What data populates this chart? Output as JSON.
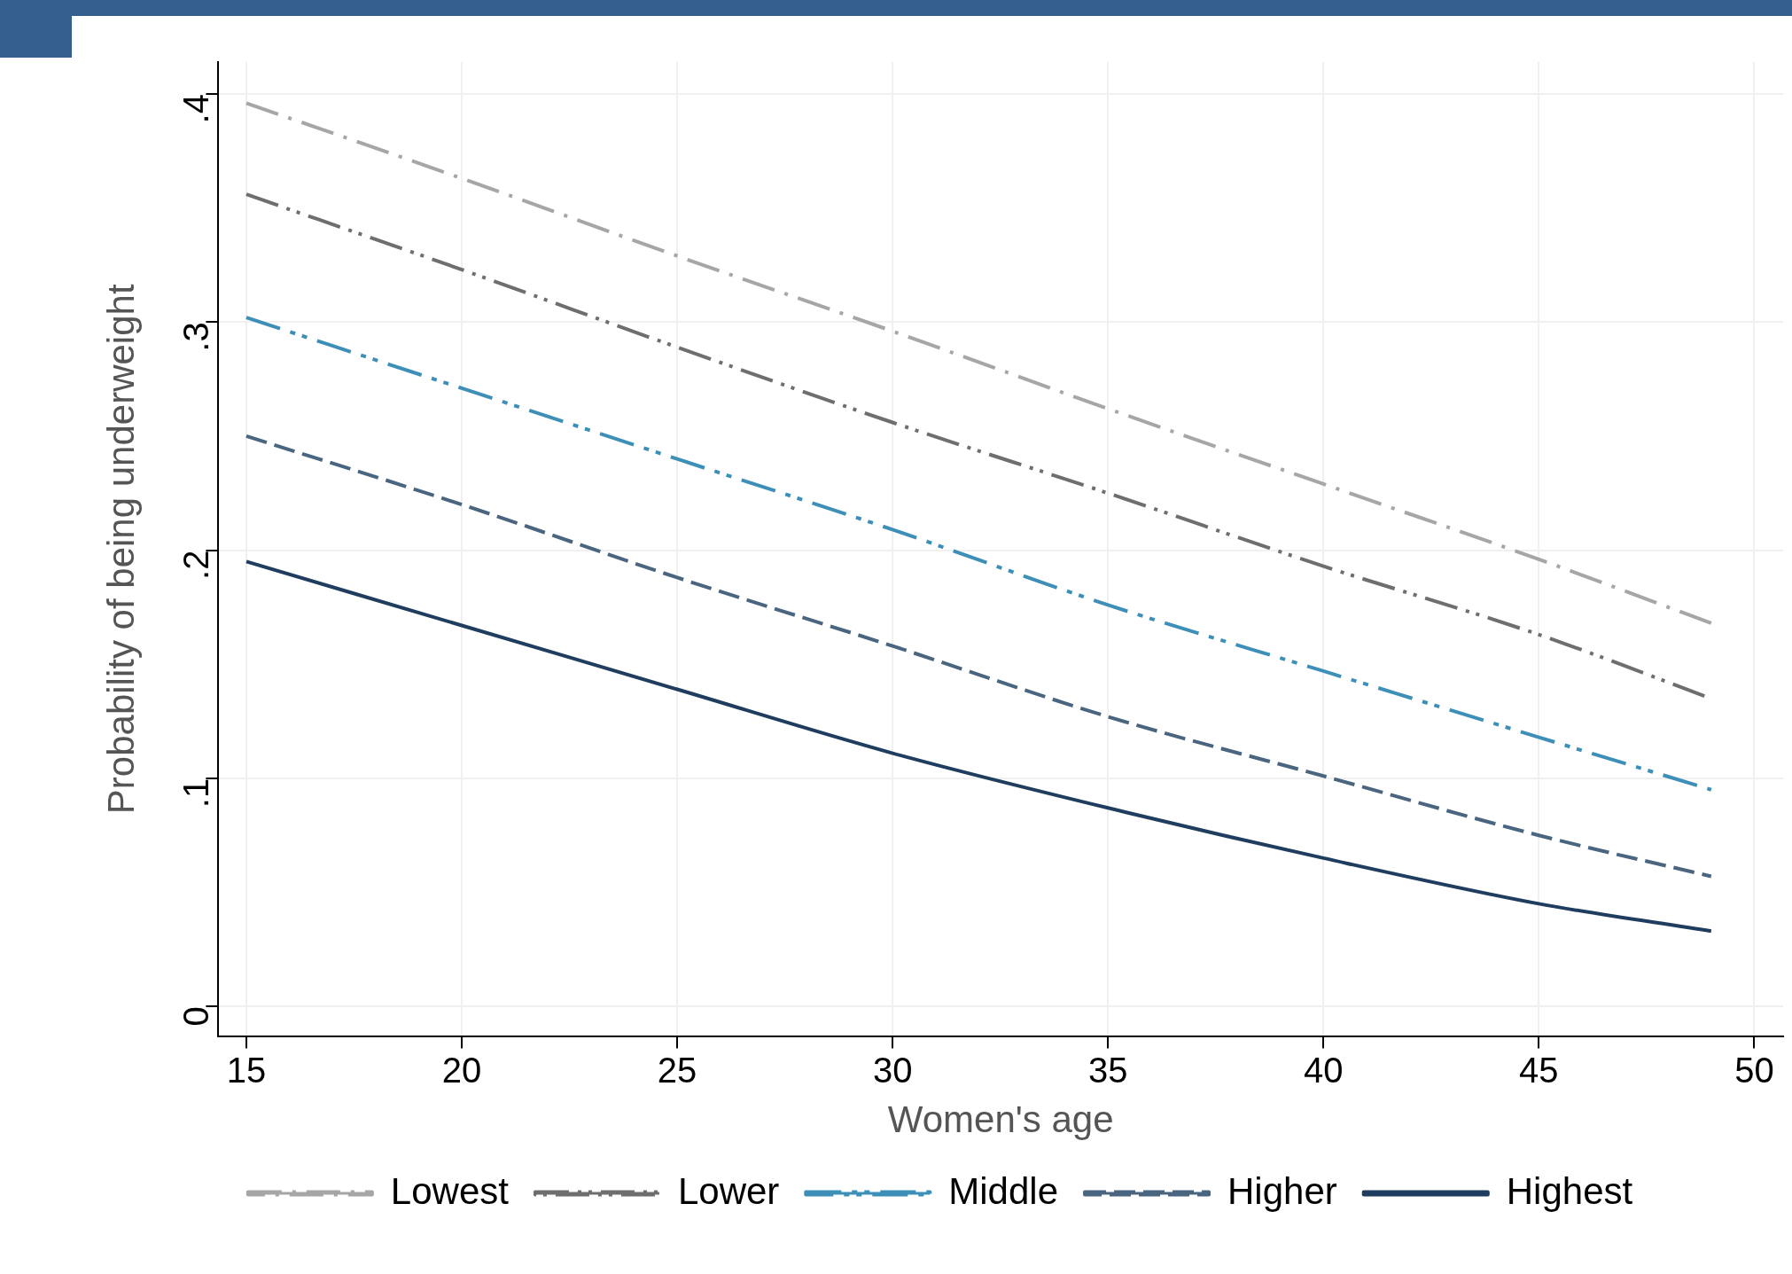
{
  "chart_data": {
    "type": "line",
    "xlabel": "Women's age",
    "ylabel": "Probability of being underweight",
    "x": [
      15,
      20,
      25,
      30,
      35,
      40,
      45,
      49
    ],
    "xlim": [
      14.35,
      50.67
    ],
    "xticks": [
      15,
      20,
      25,
      30,
      35,
      40,
      45,
      50
    ],
    "ylim": [
      -0.013,
      0.414
    ],
    "yticks": [
      {
        "value": 0,
        "label": "0"
      },
      {
        "value": 0.1,
        "label": ".1"
      },
      {
        "value": 0.2,
        "label": ".2"
      },
      {
        "value": 0.3,
        "label": ".3"
      },
      {
        "value": 0.4,
        "label": ".4"
      }
    ],
    "grid": true,
    "legend": "bottom",
    "marker": "none",
    "series": [
      {
        "name": "Lowest",
        "color": "#a6a6a6",
        "line_style": "dashed",
        "values": [
          0.396,
          0.363,
          0.329,
          0.296,
          0.262,
          0.229,
          0.196,
          0.168
        ]
      },
      {
        "name": "Lower",
        "color": "#6e6e6e",
        "line_style": "dashed",
        "values": [
          0.356,
          0.323,
          0.289,
          0.256,
          0.225,
          0.193,
          0.163,
          0.135
        ]
      },
      {
        "name": "Middle",
        "color": "#3d8fb8",
        "line_style": "dashed",
        "values": [
          0.302,
          0.271,
          0.24,
          0.209,
          0.176,
          0.147,
          0.118,
          0.095
        ]
      },
      {
        "name": "Higher",
        "color": "#4a6580",
        "line_style": "dashed",
        "values": [
          0.25,
          0.22,
          0.188,
          0.158,
          0.127,
          0.101,
          0.075,
          0.057
        ]
      },
      {
        "name": "Highest",
        "color": "#1f3d5e",
        "line_style": "solid",
        "values": [
          0.195,
          0.167,
          0.139,
          0.111,
          0.087,
          0.065,
          0.045,
          0.033
        ]
      }
    ]
  }
}
